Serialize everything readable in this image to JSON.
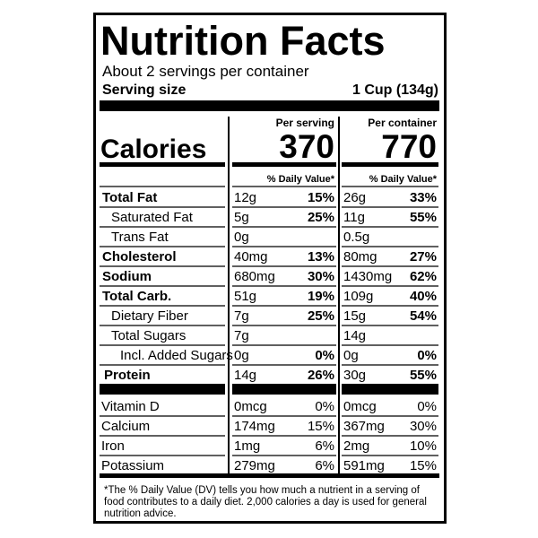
{
  "title": "Nutrition Facts",
  "servings": "About 2 servings per container",
  "serving_size": {
    "label": "Serving size",
    "value": "1 Cup (134g)"
  },
  "calories_label": "Calories",
  "columns": [
    {
      "header": "Per serving",
      "calories": "370",
      "dv_header": "% Daily Value*"
    },
    {
      "header": "Per container",
      "calories": "770",
      "dv_header": "% Daily Value*"
    }
  ],
  "nutrients": [
    {
      "name": "Total Fat",
      "values": [
        [
          "12g",
          "15%"
        ],
        [
          "26g",
          "33%"
        ]
      ]
    },
    {
      "name": "Saturated Fat",
      "values": [
        [
          "5g",
          "25%"
        ],
        [
          "11g",
          "55%"
        ]
      ]
    },
    {
      "name": "Trans Fat",
      "values": [
        [
          "0g"
        ],
        [
          "0.5g"
        ]
      ]
    },
    {
      "name": "Cholesterol",
      "values": [
        [
          "40mg",
          "13%"
        ],
        [
          "80mg",
          "27%"
        ]
      ]
    },
    {
      "name": "Sodium",
      "values": [
        [
          "680mg",
          "30%"
        ],
        [
          "1430mg",
          "62%"
        ]
      ]
    },
    {
      "name": "Total Carb.",
      "values": [
        [
          "51g",
          "19%"
        ],
        [
          "109g",
          "40%"
        ]
      ]
    },
    {
      "name": "Dietary Fiber",
      "values": [
        [
          "7g",
          "25%"
        ],
        [
          "15g",
          "54%"
        ]
      ]
    },
    {
      "name": "Total Sugars",
      "values": [
        [
          "7g"
        ],
        [
          "14g"
        ]
      ]
    },
    {
      "name": "Incl. Added Sugars",
      "values": [
        [
          "0g",
          "0%"
        ],
        [
          "0g",
          "0%"
        ]
      ]
    },
    {
      "name": "Protein",
      "values": [
        [
          "14g",
          "26%"
        ],
        [
          "30g",
          "55%"
        ]
      ]
    }
  ],
  "vitamins": [
    {
      "name": "Vitamin D",
      "values": [
        [
          "0mcg",
          "0%"
        ],
        [
          "0mcg",
          "0%"
        ]
      ]
    },
    {
      "name": "Calcium",
      "values": [
        [
          "174mg",
          "15%"
        ],
        [
          "367mg",
          "30%"
        ]
      ]
    },
    {
      "name": "Iron",
      "values": [
        [
          "1mg",
          "6%"
        ],
        [
          "2mg",
          "10%"
        ]
      ]
    },
    {
      "name": "Potassium",
      "values": [
        [
          "279mg",
          "6%"
        ],
        [
          "591mg",
          "15%"
        ]
      ]
    }
  ],
  "footnote": [
    "*The % Daily Value (DV) tells you how much a nutrient in a serving of",
    "food contributes to a daily diet. 2,000 calories a day is used for general",
    "nutrition advice."
  ]
}
